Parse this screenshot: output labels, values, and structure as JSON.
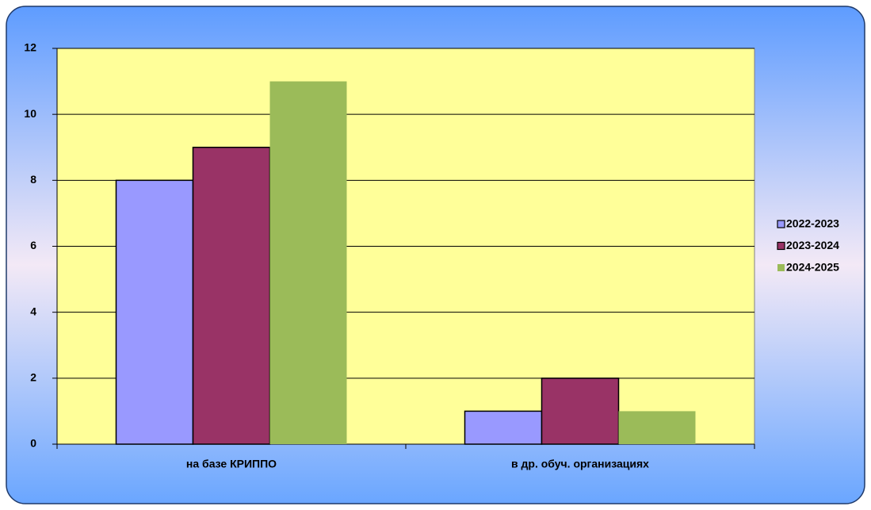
{
  "chart_data": {
    "type": "bar",
    "categories": [
      "на базе КРИППО",
      "в др. обуч. организациях"
    ],
    "series": [
      {
        "name": "2022-2023",
        "color": "#9999ff",
        "border": true,
        "values": [
          8,
          1
        ]
      },
      {
        "name": "2023-2024",
        "color": "#993366",
        "border": true,
        "values": [
          9,
          2
        ]
      },
      {
        "name": "2024-2025",
        "color": "#9bbb59",
        "border": false,
        "values": [
          11,
          1
        ]
      }
    ],
    "ylim": [
      0,
      12
    ],
    "yticks": [
      0,
      2,
      4,
      6,
      8,
      10,
      12
    ],
    "grid": true,
    "legend": "right",
    "plot_color": "#ffff99"
  }
}
